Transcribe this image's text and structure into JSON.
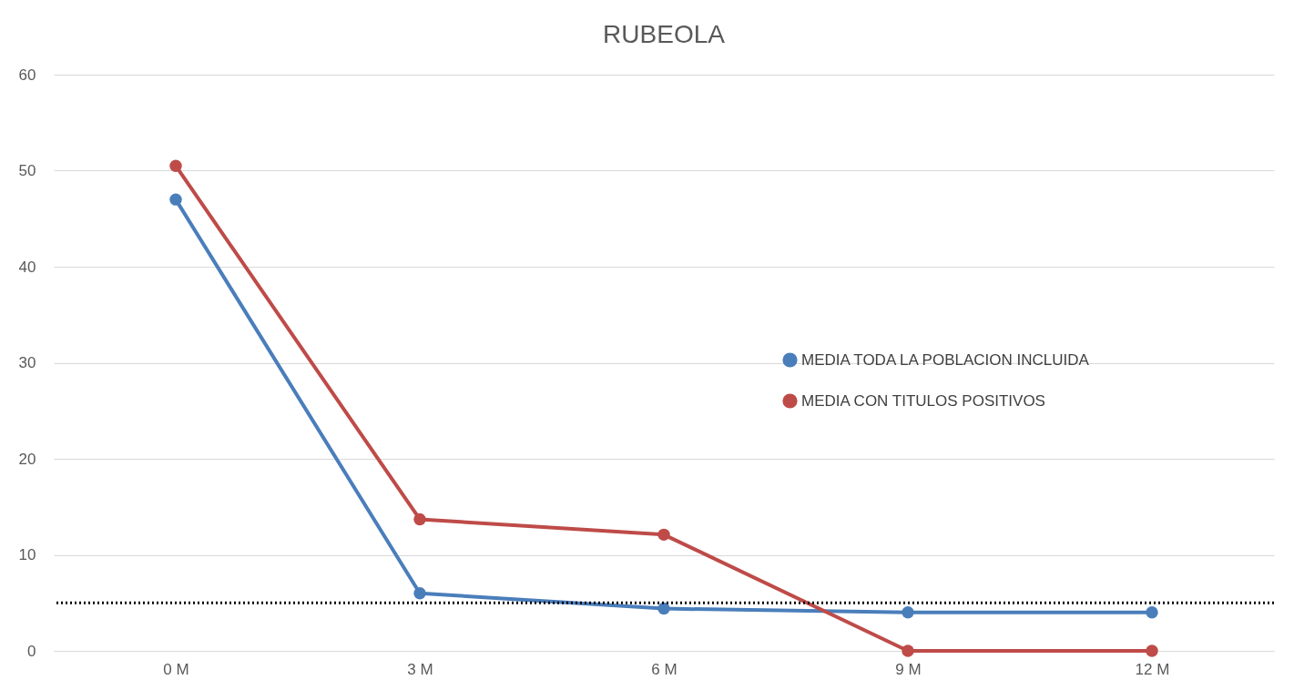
{
  "chart_data": {
    "type": "line",
    "title": "RUBEOLA",
    "categories": [
      "0 M",
      "3 M",
      "6 M",
      "9 M",
      "12 M"
    ],
    "series": [
      {
        "name": "MEDIA TODA LA POBLACION INCLUIDA",
        "color": "#4a7ebb",
        "values": [
          47,
          6,
          4.4,
          4,
          4
        ]
      },
      {
        "name": "MEDIA  CON TITULOS POSITIVOS",
        "color": "#be4b48",
        "values": [
          50.5,
          13.7,
          12.1,
          0,
          0
        ]
      }
    ],
    "ylim": [
      0,
      60
    ],
    "yticks": [
      0,
      10,
      20,
      30,
      40,
      50,
      60
    ],
    "ref_lines": [
      {
        "axis": "y",
        "value": 5,
        "color": "#000000",
        "line_style": "dotted"
      }
    ],
    "grid": "y",
    "legend": "right",
    "marker": "circle",
    "line_style": "solid"
  }
}
